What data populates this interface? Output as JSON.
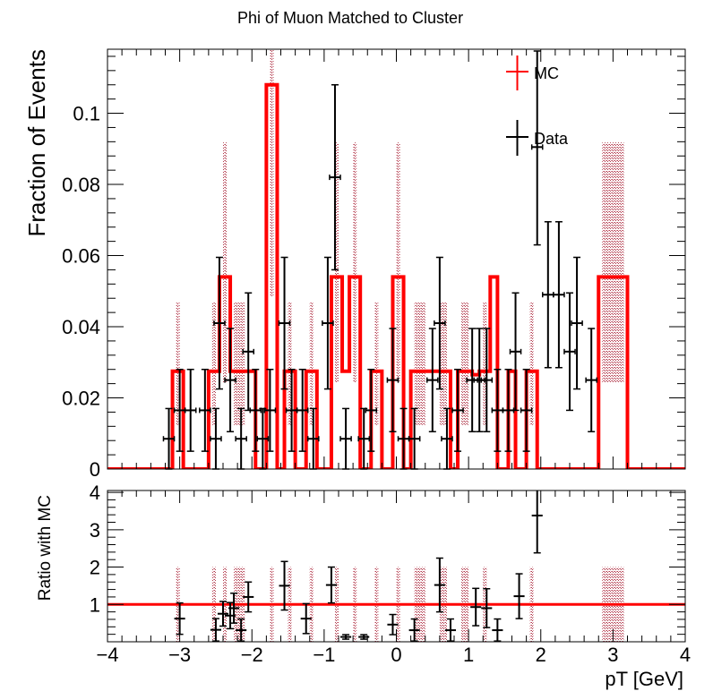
{
  "chart_data": [
    {
      "type": "histogram",
      "panel": "main",
      "title": "Phi of Muon Matched to Cluster",
      "ylabel": "Fraction of Events",
      "xlim": [
        -4,
        4
      ],
      "ylim": [
        0,
        0.118
      ],
      "y_ticks": [
        0,
        0.02,
        0.04,
        0.06,
        0.08,
        0.1
      ],
      "y_tick_labels": [
        "0",
        "0.02",
        "0.04",
        "0.06",
        "0.08",
        "0.1"
      ],
      "legend": [
        {
          "name": "MC",
          "color": "#ff0000"
        },
        {
          "name": "Data",
          "color": "#000000"
        }
      ],
      "mc_edges": [
        -3.1,
        -2.95,
        -2.6,
        -2.45,
        -2.3,
        -2.05,
        -1.95,
        -1.8,
        -1.65,
        -1.55,
        -1.4,
        -1.25,
        -1.1,
        -0.9,
        -0.75,
        -0.65,
        -0.5,
        -0.35,
        -0.2,
        -0.05,
        0.1,
        0.2,
        0.45,
        0.55,
        0.75,
        0.85,
        1.05,
        1.15,
        1.3,
        1.4,
        1.55,
        1.65,
        1.8,
        1.95,
        2.8,
        3.2
      ],
      "mc_values": [
        0.0275,
        0,
        0.0275,
        0.054,
        0.0275,
        0.0275,
        0,
        0.108,
        0,
        0.0275,
        0,
        0.0275,
        0,
        0.054,
        0.0275,
        0.054,
        0,
        0.0275,
        0,
        0.054,
        0,
        0.0275,
        0.0275,
        0.0275,
        0,
        0.0275,
        0.0265,
        0.0275,
        0.054,
        0,
        0.0275,
        0,
        0.0275,
        0,
        0.054
      ],
      "data_points": [
        {
          "x": -3.15,
          "y": 0.0085,
          "yerr": 0.0085
        },
        {
          "x": -3.0,
          "y": 0.0165,
          "yerr": 0.0115
        },
        {
          "x": -2.85,
          "y": 0.0165,
          "yerr": 0.0115
        },
        {
          "x": -2.65,
          "y": 0.0165,
          "yerr": 0.0115
        },
        {
          "x": -2.5,
          "y": 0.0085,
          "yerr": 0.0085
        },
        {
          "x": -2.45,
          "y": 0.041,
          "yerr": 0.0185
        },
        {
          "x": -2.3,
          "y": 0.025,
          "yerr": 0.0145
        },
        {
          "x": -2.15,
          "y": 0.0085,
          "yerr": 0.0085
        },
        {
          "x": -2.05,
          "y": 0.033,
          "yerr": 0.0165
        },
        {
          "x": -1.95,
          "y": 0.0165,
          "yerr": 0.0115
        },
        {
          "x": -1.85,
          "y": 0.0085,
          "yerr": 0.0085
        },
        {
          "x": -1.75,
          "y": 0.0165,
          "yerr": 0.0115
        },
        {
          "x": -1.55,
          "y": 0.041,
          "yerr": 0.0185
        },
        {
          "x": -1.45,
          "y": 0.0165,
          "yerr": 0.0115
        },
        {
          "x": -1.3,
          "y": 0.0165,
          "yerr": 0.0115
        },
        {
          "x": -1.15,
          "y": 0.0085,
          "yerr": 0.0085
        },
        {
          "x": -0.95,
          "y": 0.041,
          "yerr": 0.0185
        },
        {
          "x": -0.85,
          "y": 0.082,
          "yerr": 0.026
        },
        {
          "x": -0.7,
          "y": 0.0085,
          "yerr": 0.0085
        },
        {
          "x": -0.45,
          "y": 0.0085,
          "yerr": 0.0085
        },
        {
          "x": -0.35,
          "y": 0.0165,
          "yerr": 0.0115
        },
        {
          "x": -0.05,
          "y": 0.025,
          "yerr": 0.0145
        },
        {
          "x": 0.1,
          "y": 0.0085,
          "yerr": 0.0085
        },
        {
          "x": 0.25,
          "y": 0.0085,
          "yerr": 0.0085
        },
        {
          "x": 0.5,
          "y": 0.025,
          "yerr": 0.0145
        },
        {
          "x": 0.6,
          "y": 0.041,
          "yerr": 0.0185
        },
        {
          "x": 0.7,
          "y": 0.0085,
          "yerr": 0.0085
        },
        {
          "x": 0.85,
          "y": 0.0165,
          "yerr": 0.0115
        },
        {
          "x": 1.05,
          "y": 0.025,
          "yerr": 0.0145
        },
        {
          "x": 1.15,
          "y": 0.025,
          "yerr": 0.0145
        },
        {
          "x": 1.25,
          "y": 0.025,
          "yerr": 0.0145
        },
        {
          "x": 1.4,
          "y": 0.0165,
          "yerr": 0.0115
        },
        {
          "x": 1.55,
          "y": 0.0165,
          "yerr": 0.0115
        },
        {
          "x": 1.65,
          "y": 0.033,
          "yerr": 0.0165
        },
        {
          "x": 1.8,
          "y": 0.0165,
          "yerr": 0.0115
        },
        {
          "x": 1.95,
          "y": 0.0905,
          "yerr": 0.0275
        },
        {
          "x": 2.1,
          "y": 0.049,
          "yerr": 0.0205
        },
        {
          "x": 2.25,
          "y": 0.049,
          "yerr": 0.0205
        },
        {
          "x": 2.4,
          "y": 0.033,
          "yerr": 0.0165
        },
        {
          "x": 2.5,
          "y": 0.041,
          "yerr": 0.0185
        },
        {
          "x": 2.7,
          "y": 0.025,
          "yerr": 0.0145
        }
      ],
      "bin_half_width": 0.075
    },
    {
      "type": "scatter",
      "panel": "ratio",
      "ylabel": "Ratio with MC",
      "xlabel": "pT [GeV]",
      "xlim": [
        -4,
        4
      ],
      "ylim": [
        0,
        4.05
      ],
      "y_ticks": [
        1,
        2,
        3,
        4
      ],
      "y_tick_labels": [
        "1",
        "2",
        "3",
        "4"
      ],
      "x_ticks": [
        -4,
        -3,
        -2,
        -1,
        0,
        1,
        2,
        3,
        4
      ],
      "x_tick_labels": [
        "−4",
        "−3",
        "−2",
        "−1",
        "0",
        "1",
        "2",
        "3",
        "4"
      ],
      "reference_line": 1,
      "band_upper": 2,
      "points": [
        {
          "x": -3.0,
          "y": 0.62,
          "yerr": 0.42
        },
        {
          "x": -2.5,
          "y": 0.32,
          "yerr": 0.3
        },
        {
          "x": -2.4,
          "y": 0.75,
          "yerr": 0.33
        },
        {
          "x": -2.3,
          "y": 0.7,
          "yerr": 0.35
        },
        {
          "x": -2.25,
          "y": 0.9,
          "yerr": 0.4
        },
        {
          "x": -2.15,
          "y": 0.31,
          "yerr": 0.3
        },
        {
          "x": -2.05,
          "y": 1.2,
          "yerr": 0.4
        },
        {
          "x": -1.55,
          "y": 1.5,
          "yerr": 0.65
        },
        {
          "x": -1.25,
          "y": 0.62,
          "yerr": 0.4
        },
        {
          "x": -0.9,
          "y": 1.52,
          "yerr": 0.48
        },
        {
          "x": -0.7,
          "y": 0.13,
          "yerr": 0.06
        },
        {
          "x": -0.45,
          "y": 0.13,
          "yerr": 0.06
        },
        {
          "x": -0.05,
          "y": 0.46,
          "yerr": 0.27
        },
        {
          "x": 0.25,
          "y": 0.31,
          "yerr": 0.3
        },
        {
          "x": 0.6,
          "y": 1.52,
          "yerr": 0.72
        },
        {
          "x": 0.75,
          "y": 0.31,
          "yerr": 0.3
        },
        {
          "x": 1.1,
          "y": 0.93,
          "yerr": 0.5
        },
        {
          "x": 1.25,
          "y": 0.9,
          "yerr": 0.52
        },
        {
          "x": 1.4,
          "y": 0.31,
          "yerr": 0.3
        },
        {
          "x": 1.7,
          "y": 1.22,
          "yerr": 0.6
        },
        {
          "x": 1.95,
          "y": 3.38,
          "yerr": 1.0
        }
      ]
    }
  ]
}
